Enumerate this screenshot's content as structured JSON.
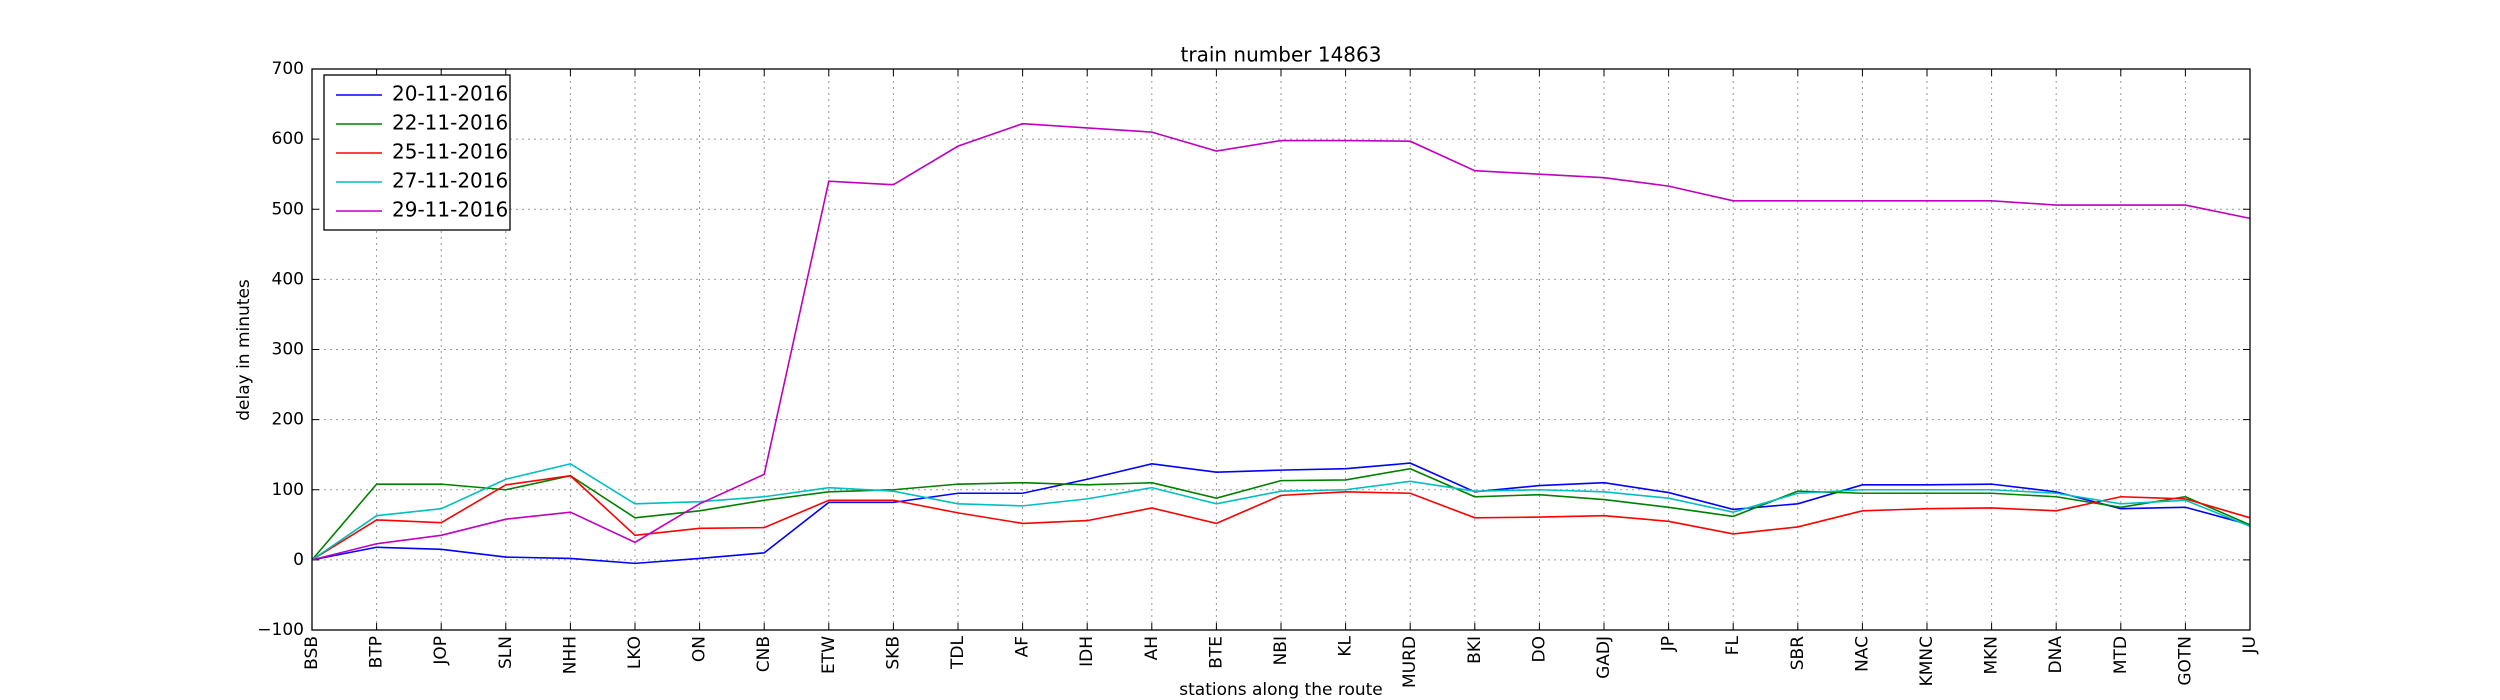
{
  "chart_data": {
    "type": "line",
    "title": "train number 14863",
    "x_label": "stations along the route",
    "y_label": "delay in minutes",
    "categories": [
      "BSB",
      "BTP",
      "JOP",
      "SLN",
      "NHH",
      "LKO",
      "ON",
      "CNB",
      "ETW",
      "SKB",
      "TDL",
      "AF",
      "IDH",
      "AH",
      "BTE",
      "NBI",
      "KL",
      "MURD",
      "BKI",
      "DO",
      "GADJ",
      "JP",
      "FL",
      "SBR",
      "NAC",
      "KMNC",
      "MKN",
      "DNA",
      "MTD",
      "GOTN",
      "JU"
    ],
    "series": [
      {
        "name": "20-11-2016",
        "color": "#0000ff",
        "values": [
          0,
          18,
          15,
          4,
          2,
          -5,
          2,
          10,
          82,
          82,
          95,
          95,
          115,
          137,
          125,
          128,
          130,
          138,
          97,
          106,
          110,
          96,
          72,
          80,
          107,
          107,
          108,
          97,
          73,
          75,
          50
        ]
      },
      {
        "name": "22-11-2016",
        "color": "#008000",
        "values": [
          0,
          108,
          108,
          100,
          120,
          60,
          70,
          85,
          97,
          100,
          108,
          110,
          107,
          110,
          88,
          113,
          114,
          130,
          90,
          93,
          86,
          75,
          62,
          98,
          95,
          95,
          95,
          90,
          75,
          90,
          50
        ]
      },
      {
        "name": "25-11-2016",
        "color": "#ff0000",
        "values": [
          0,
          57,
          53,
          107,
          120,
          35,
          45,
          46,
          85,
          85,
          67,
          52,
          56,
          74,
          52,
          92,
          97,
          95,
          60,
          61,
          63,
          55,
          37,
          47,
          70,
          73,
          74,
          70,
          90,
          87,
          60
        ]
      },
      {
        "name": "27-11-2016",
        "color": "#00bfbf",
        "values": [
          0,
          63,
          73,
          115,
          137,
          80,
          83,
          90,
          103,
          98,
          80,
          77,
          87,
          103,
          80,
          98,
          100,
          112,
          98,
          100,
          97,
          88,
          68,
          95,
          100,
          100,
          100,
          95,
          80,
          85,
          48
        ]
      },
      {
        "name": "29-11-2016",
        "color": "#bf00bf",
        "values": [
          0,
          23,
          35,
          58,
          68,
          25,
          80,
          122,
          540,
          535,
          590,
          622,
          616,
          610,
          583,
          598,
          598,
          597,
          555,
          550,
          545,
          533,
          512,
          512,
          512,
          512,
          512,
          506,
          506,
          506,
          487
        ]
      }
    ],
    "ylim": [
      -100,
      700
    ],
    "yticks": [
      {
        "value": -100,
        "label": "−100"
      },
      0,
      100,
      200,
      300,
      400,
      500,
      600,
      700
    ],
    "grid": true,
    "legend": "upper left"
  }
}
